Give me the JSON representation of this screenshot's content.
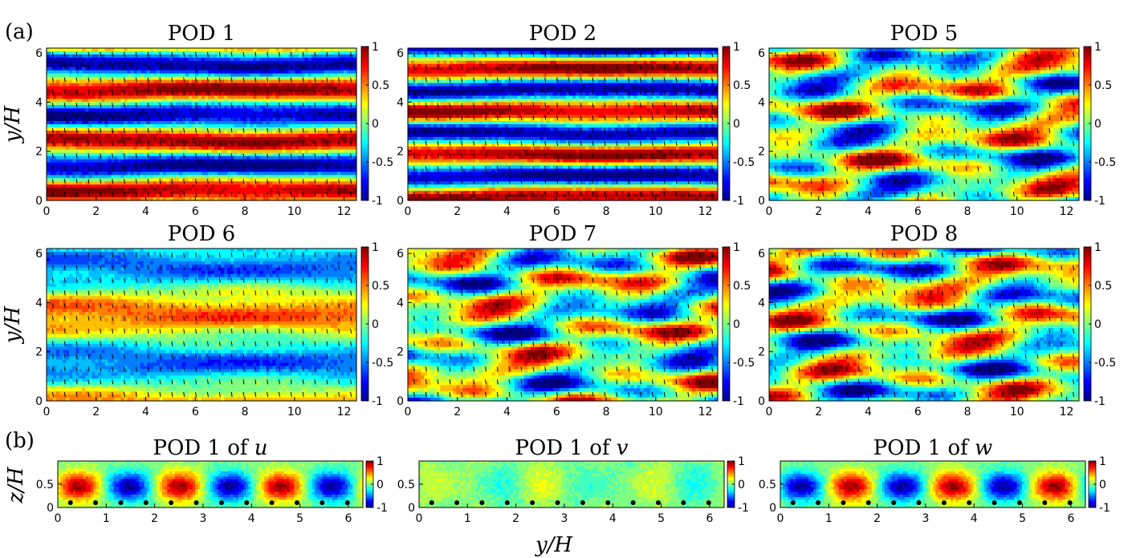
{
  "figure": {
    "panel_labels": [
      "(a)",
      "(b)"
    ],
    "xlabel": "y/H",
    "ylabel_a": "y/H",
    "ylabel_b": "z/H"
  },
  "colormap": {
    "name": "jet",
    "stops": [
      "#00008f",
      "#0000ff",
      "#00ffff",
      "#ffff00",
      "#ff0000",
      "#800000"
    ],
    "ticks": [
      "1",
      "0.5",
      "0",
      "-0.5",
      "-1"
    ],
    "ticks_b": [
      "1",
      "0",
      "-1"
    ]
  },
  "chart_data": [
    {
      "type": "heatmap",
      "title": "POD 1",
      "xlim": [
        0,
        12.5
      ],
      "ylim": [
        0,
        6.2
      ],
      "xticks": [
        0,
        2,
        4,
        6,
        8,
        10,
        12
      ],
      "yticks": [
        0,
        2,
        4,
        6
      ],
      "clim": [
        -1,
        1
      ],
      "pattern": "streamwise-bands",
      "kx": 0
    },
    {
      "type": "heatmap",
      "title": "POD 2",
      "xlim": [
        0,
        12.5
      ],
      "ylim": [
        0,
        6.2
      ],
      "xticks": [
        0,
        2,
        4,
        6,
        8,
        10,
        12
      ],
      "yticks": [
        0,
        2,
        4,
        6
      ],
      "clim": [
        -1,
        1
      ],
      "pattern": "streamwise-bands",
      "kx": 0
    },
    {
      "type": "heatmap",
      "title": "POD 5",
      "xlim": [
        0,
        12.5
      ],
      "ylim": [
        0,
        6.2
      ],
      "xticks": [
        0,
        2,
        4,
        6,
        8,
        10,
        12
      ],
      "yticks": [
        0,
        2,
        4,
        6
      ],
      "clim": [
        -1,
        1
      ],
      "pattern": "modulated-bands",
      "kx": 1
    },
    {
      "type": "heatmap",
      "title": "POD 6",
      "xlim": [
        0,
        12.5
      ],
      "ylim": [
        0,
        6.2
      ],
      "xticks": [
        0,
        2,
        4,
        6,
        8,
        10,
        12
      ],
      "yticks": [
        0,
        2,
        4,
        6
      ],
      "clim": [
        -1,
        1
      ],
      "pattern": "streamwise-bands",
      "kx": 0
    },
    {
      "type": "heatmap",
      "title": "POD 7",
      "xlim": [
        0,
        12.5
      ],
      "ylim": [
        0,
        6.2
      ],
      "xticks": [
        0,
        2,
        4,
        6,
        8,
        10,
        12
      ],
      "yticks": [
        0,
        2,
        4,
        6
      ],
      "clim": [
        -1,
        1
      ],
      "pattern": "modulated-bands",
      "kx": 1
    },
    {
      "type": "heatmap",
      "title": "POD 8",
      "xlim": [
        0,
        12.5
      ],
      "ylim": [
        0,
        6.2
      ],
      "xticks": [
        0,
        2,
        4,
        6,
        8,
        10,
        12
      ],
      "yticks": [
        0,
        2,
        4,
        6
      ],
      "clim": [
        -1,
        1
      ],
      "pattern": "modulated-bands",
      "kx": 1
    },
    {
      "type": "heatmap",
      "title_prefix": "POD 1 of ",
      "title_var": "u",
      "xlim": [
        0,
        6.3
      ],
      "ylim": [
        0,
        1
      ],
      "xticks": [
        0,
        1,
        2,
        3,
        4,
        5,
        6
      ],
      "yticks": [
        0,
        0.5
      ],
      "clim": [
        -1,
        1
      ],
      "pattern": "cross-section",
      "sign": 1
    },
    {
      "type": "heatmap",
      "title_prefix": "POD 1 of ",
      "title_var": "v",
      "xlim": [
        0,
        6.3
      ],
      "ylim": [
        0,
        1
      ],
      "xticks": [
        0,
        1,
        2,
        3,
        4,
        5,
        6
      ],
      "yticks": [
        0,
        0.5
      ],
      "clim": [
        -1,
        1
      ],
      "pattern": "cross-section-weak",
      "sign": 1
    },
    {
      "type": "heatmap",
      "title_prefix": "POD 1 of ",
      "title_var": "w",
      "xlim": [
        0,
        6.3
      ],
      "ylim": [
        0,
        1
      ],
      "xticks": [
        0,
        1,
        2,
        3,
        4,
        5,
        6
      ],
      "yticks": [
        0,
        0.5
      ],
      "clim": [
        -1,
        1
      ],
      "pattern": "cross-section",
      "sign": -1
    }
  ],
  "roughness_positions": [
    0.26,
    0.78,
    1.3,
    1.82,
    2.34,
    2.86,
    3.38,
    3.9,
    4.42,
    4.94,
    5.46,
    5.98
  ]
}
